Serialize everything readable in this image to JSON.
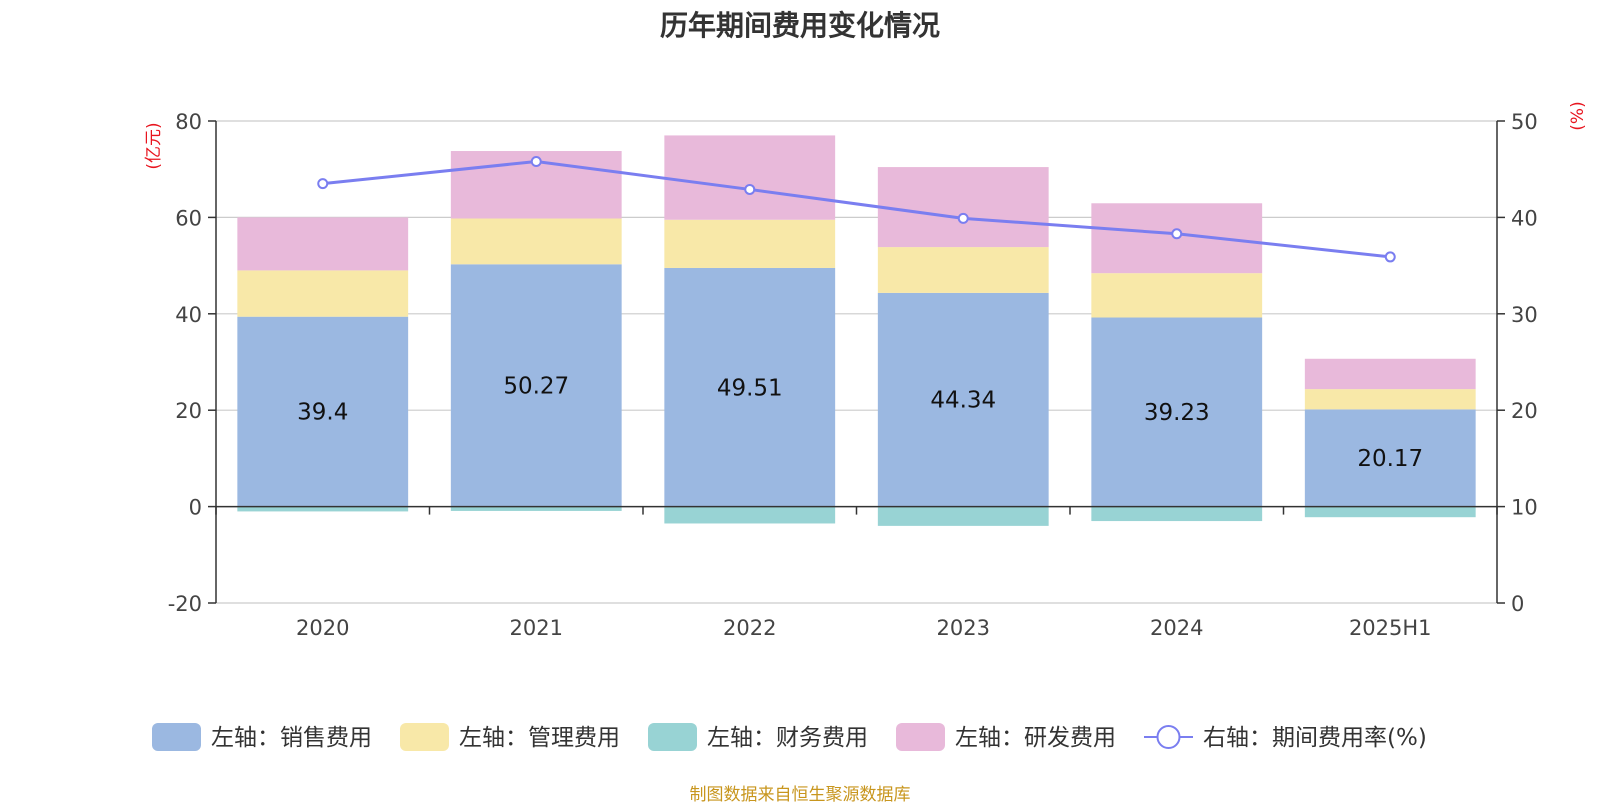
{
  "chart_data": {
    "type": "bar",
    "title": "历年期间费用变化情况",
    "categories": [
      "2020",
      "2021",
      "2022",
      "2023",
      "2024",
      "2025H1"
    ],
    "left_axis": {
      "unit": "(亿元)",
      "min": -20,
      "max": 80,
      "ticks": [
        -20,
        0,
        20,
        40,
        60,
        80
      ]
    },
    "right_axis": {
      "unit": "(%)",
      "min": 0,
      "max": 50,
      "ticks": [
        0,
        10,
        20,
        30,
        40,
        50
      ]
    },
    "series": [
      {
        "name": "左轴：销售费用",
        "kind": "bar",
        "axis": "left",
        "color": "#9bb8e1",
        "values": [
          39.4,
          50.27,
          49.51,
          44.34,
          39.23,
          20.17
        ],
        "show_labels": true
      },
      {
        "name": "左轴：管理费用",
        "kind": "bar",
        "axis": "left",
        "color": "#f8e8a8",
        "values": [
          9.6,
          9.5,
          10.0,
          9.5,
          9.2,
          4.2
        ],
        "show_labels": false
      },
      {
        "name": "左轴：财务费用",
        "kind": "bar",
        "axis": "left",
        "color": "#98d3d4",
        "values": [
          -1.0,
          -0.9,
          -3.5,
          -4.0,
          -3.0,
          -2.2
        ],
        "show_labels": false
      },
      {
        "name": "左轴：研发费用",
        "kind": "bar",
        "axis": "left",
        "color": "#e8b9da",
        "values": [
          11.0,
          14.0,
          17.5,
          16.6,
          14.5,
          6.3
        ],
        "show_labels": false
      },
      {
        "name": "右轴：期间费用率(%)",
        "kind": "line",
        "axis": "right",
        "color": "#7a7ef0",
        "values": [
          43.5,
          45.8,
          42.9,
          39.9,
          38.3,
          35.9
        ]
      }
    ],
    "grid": true,
    "legend_position": "bottom"
  },
  "footer": {
    "source": "制图数据来自恒生聚源数据库"
  }
}
